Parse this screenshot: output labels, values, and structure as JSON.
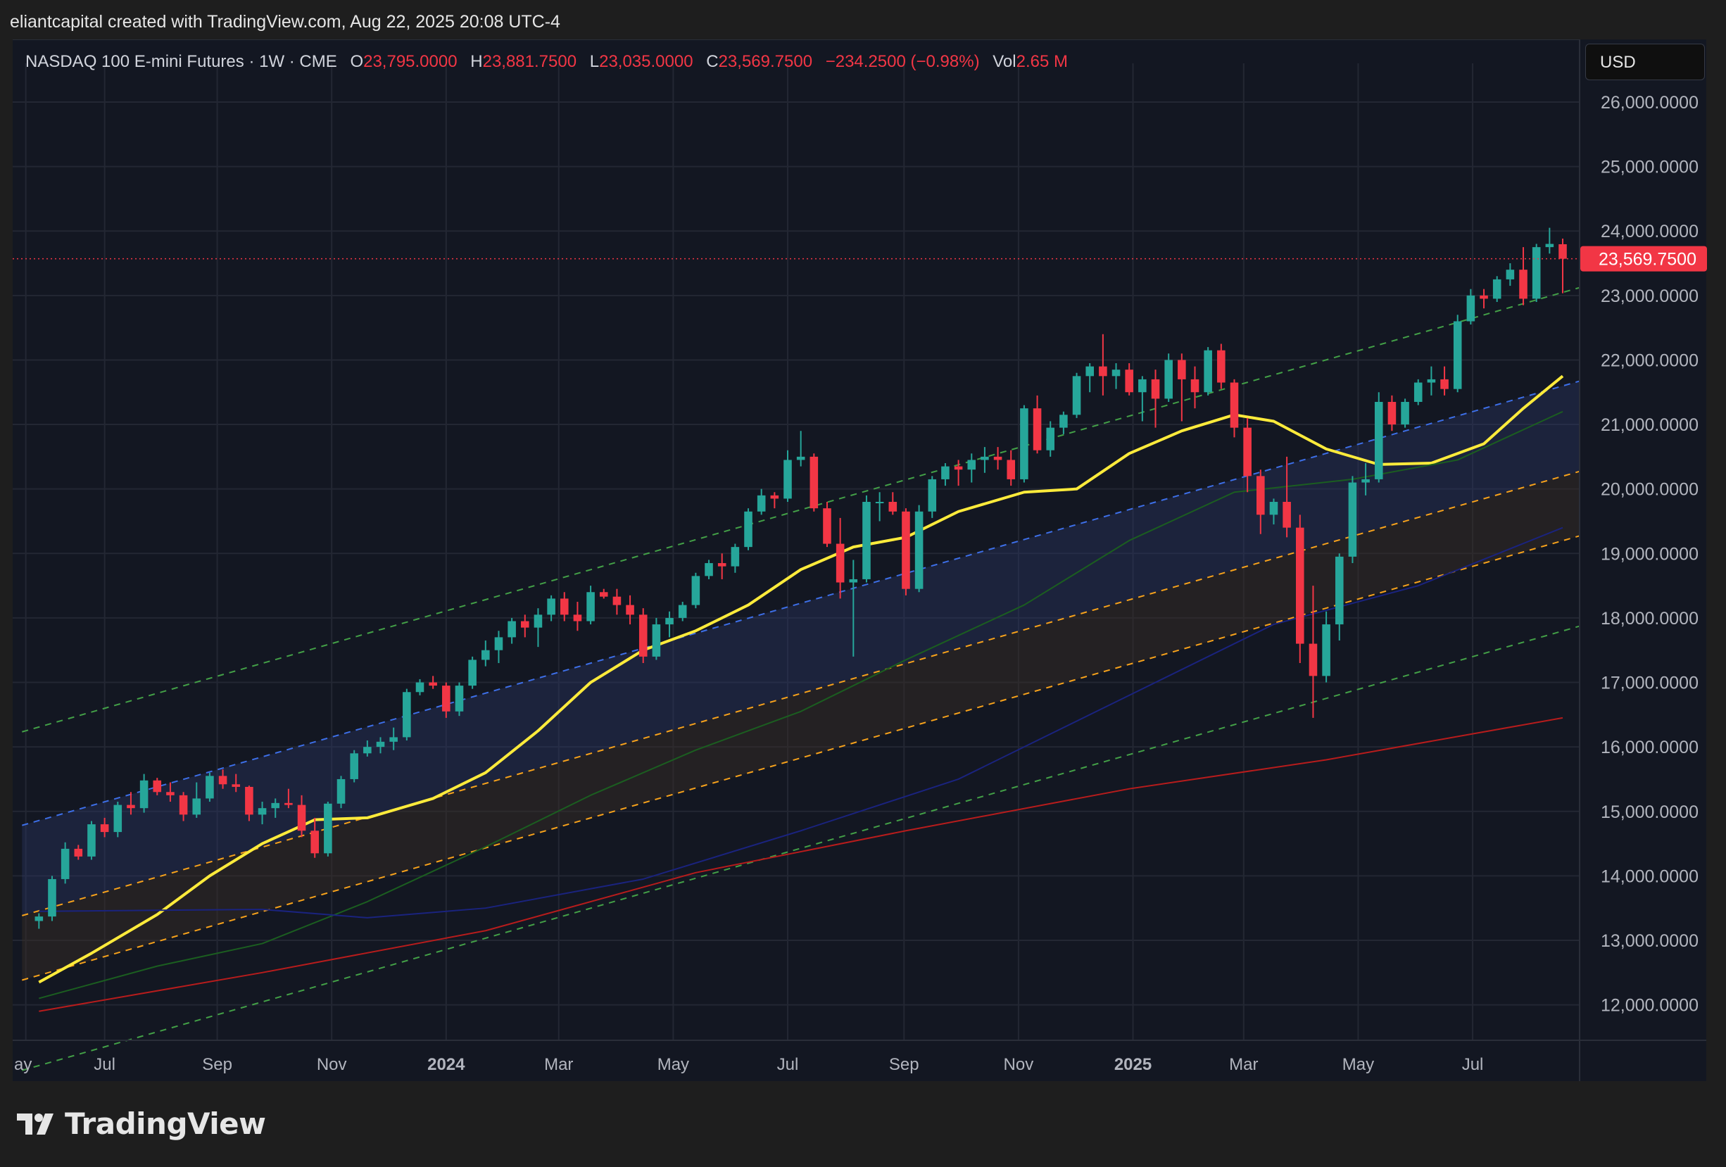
{
  "header": {
    "text": "eliantcapital created with TradingView.com, Aug 22, 2025 20:08 UTC-4"
  },
  "legend": {
    "symbol": "NASDAQ 100 E-mini Futures · 1W · CME",
    "o_label": "O",
    "o_value": "23,795.0000",
    "h_label": "H",
    "h_value": "23,881.7500",
    "l_label": "L",
    "l_value": "23,035.0000",
    "c_label": "C",
    "c_value": "23,569.7500",
    "change": "−234.2500 (−0.98%)",
    "vol_label": "Vol",
    "vol_value": "2.65 M"
  },
  "currency": "USD",
  "price_label": "23,569.7500",
  "brand": "TradingView",
  "colors": {
    "background": "#131722",
    "up": "#26a69a",
    "down": "#f23645",
    "ma20": "#ffeb3b",
    "ma50": "#1b5e20",
    "ma100": "#1a237e",
    "ma200": "#b71c1c"
  },
  "chart_data": {
    "type": "candlestick",
    "title": "NASDAQ 100 E-mini Futures · 1W · CME",
    "interval": "1W",
    "ylim": [
      11450,
      26600
    ],
    "y_ticks": [
      "12,000.0000",
      "13,000.0000",
      "14,000.0000",
      "15,000.0000",
      "16,000.0000",
      "17,000.0000",
      "18,000.0000",
      "19,000.0000",
      "20,000.0000",
      "21,000.0000",
      "22,000.0000",
      "23,000.0000",
      "24,000.0000",
      "25,000.0000",
      "26,000.0000"
    ],
    "y_tick_values": [
      12000,
      13000,
      14000,
      15000,
      16000,
      17000,
      18000,
      19000,
      20000,
      21000,
      22000,
      23000,
      24000,
      25000,
      26000
    ],
    "x_ticks": [
      "ay",
      "Jul",
      "Sep",
      "Nov",
      "2024",
      "Mar",
      "May",
      "Jul",
      "Sep",
      "Nov",
      "2025",
      "Mar",
      "May",
      "Jul"
    ],
    "x_tick_dates": [
      "2023-05-22",
      "2023-07-03",
      "2023-09-01",
      "2023-11-01",
      "2024-01-01",
      "2024-03-01",
      "2024-05-01",
      "2024-07-01",
      "2024-09-01",
      "2024-11-01",
      "2025-01-01",
      "2025-03-01",
      "2025-05-01",
      "2025-07-01"
    ],
    "bold_ticks": [
      "2024",
      "2025"
    ],
    "grid": true,
    "last_price": 23569.75,
    "ohlc": [
      [
        "2023-05-29",
        13300,
        13420,
        13180,
        13370
      ],
      [
        "2023-06-05",
        13370,
        14000,
        13300,
        13950
      ],
      [
        "2023-06-12",
        13950,
        14520,
        13880,
        14420
      ],
      [
        "2023-06-19",
        14420,
        14480,
        14250,
        14300
      ],
      [
        "2023-06-26",
        14300,
        14850,
        14250,
        14800
      ],
      [
        "2023-07-03",
        14800,
        14900,
        14600,
        14680
      ],
      [
        "2023-07-10",
        14680,
        15150,
        14600,
        15100
      ],
      [
        "2023-07-17",
        15100,
        15300,
        14950,
        15050
      ],
      [
        "2023-07-24",
        15050,
        15580,
        14980,
        15480
      ],
      [
        "2023-07-31",
        15480,
        15520,
        15250,
        15300
      ],
      [
        "2023-08-07",
        15300,
        15450,
        15150,
        15250
      ],
      [
        "2023-08-14",
        15250,
        15300,
        14850,
        14950
      ],
      [
        "2023-08-21",
        14950,
        15450,
        14900,
        15200
      ],
      [
        "2023-08-28",
        15200,
        15600,
        15150,
        15550
      ],
      [
        "2023-09-04",
        15550,
        15650,
        15350,
        15420
      ],
      [
        "2023-09-11",
        15420,
        15580,
        15300,
        15380
      ],
      [
        "2023-09-18",
        15380,
        15400,
        14850,
        14950
      ],
      [
        "2023-09-25",
        14950,
        15150,
        14800,
        15050
      ],
      [
        "2023-10-02",
        15050,
        15200,
        14900,
        15130
      ],
      [
        "2023-10-09",
        15130,
        15350,
        15050,
        15100
      ],
      [
        "2023-10-16",
        15100,
        15250,
        14600,
        14700
      ],
      [
        "2023-10-23",
        14700,
        14900,
        14280,
        14350
      ],
      [
        "2023-10-30",
        14350,
        15150,
        14300,
        15120
      ],
      [
        "2023-11-06",
        15120,
        15550,
        15050,
        15500
      ],
      [
        "2023-11-13",
        15500,
        15950,
        15450,
        15900
      ],
      [
        "2023-11-20",
        15900,
        16100,
        15850,
        16000
      ],
      [
        "2023-11-27",
        16000,
        16150,
        15900,
        16080
      ],
      [
        "2023-12-04",
        16080,
        16300,
        15950,
        16150
      ],
      [
        "2023-12-11",
        16150,
        16900,
        16100,
        16850
      ],
      [
        "2023-12-18",
        16850,
        17050,
        16800,
        17000
      ],
      [
        "2023-12-25",
        17000,
        17100,
        16900,
        16950
      ],
      [
        "2024-01-01",
        16950,
        17000,
        16450,
        16550
      ],
      [
        "2024-01-08",
        16550,
        17000,
        16480,
        16950
      ],
      [
        "2024-01-15",
        16950,
        17400,
        16900,
        17350
      ],
      [
        "2024-01-22",
        17350,
        17650,
        17250,
        17500
      ],
      [
        "2024-01-29",
        17500,
        17800,
        17300,
        17700
      ],
      [
        "2024-02-05",
        17700,
        18000,
        17600,
        17950
      ],
      [
        "2024-02-12",
        17950,
        18050,
        17700,
        17850
      ],
      [
        "2024-02-19",
        17850,
        18150,
        17550,
        18050
      ],
      [
        "2024-02-26",
        18050,
        18350,
        17950,
        18300
      ],
      [
        "2024-03-04",
        18300,
        18400,
        17950,
        18050
      ],
      [
        "2024-03-11",
        18050,
        18250,
        17800,
        17950
      ],
      [
        "2024-03-18",
        17950,
        18500,
        17900,
        18400
      ],
      [
        "2024-03-25",
        18400,
        18450,
        18300,
        18330
      ],
      [
        "2024-04-01",
        18330,
        18450,
        18050,
        18200
      ],
      [
        "2024-04-08",
        18200,
        18350,
        17900,
        18050
      ],
      [
        "2024-04-15",
        18050,
        18150,
        17300,
        17400
      ],
      [
        "2024-04-22",
        17400,
        18000,
        17350,
        17900
      ],
      [
        "2024-04-29",
        17900,
        18100,
        17700,
        18000
      ],
      [
        "2024-05-06",
        18000,
        18250,
        17950,
        18200
      ],
      [
        "2024-05-13",
        18200,
        18700,
        18150,
        18650
      ],
      [
        "2024-05-20",
        18650,
        18900,
        18600,
        18850
      ],
      [
        "2024-05-27",
        18850,
        19000,
        18600,
        18800
      ],
      [
        "2024-06-03",
        18800,
        19150,
        18700,
        19100
      ],
      [
        "2024-06-10",
        19100,
        19700,
        19050,
        19650
      ],
      [
        "2024-06-17",
        19650,
        20000,
        19600,
        19900
      ],
      [
        "2024-06-24",
        19900,
        19950,
        19700,
        19850
      ],
      [
        "2024-07-01",
        19850,
        20600,
        19800,
        20450
      ],
      [
        "2024-07-08",
        20450,
        20900,
        20350,
        20500
      ],
      [
        "2024-07-15",
        20500,
        20550,
        19650,
        19700
      ],
      [
        "2024-07-22",
        19700,
        19800,
        19100,
        19150
      ],
      [
        "2024-07-29",
        19150,
        19550,
        18300,
        18550
      ],
      [
        "2024-08-05",
        18550,
        18900,
        17400,
        18600
      ],
      [
        "2024-08-12",
        18600,
        19900,
        18550,
        19800
      ],
      [
        "2024-08-19",
        19800,
        19950,
        19500,
        19800
      ],
      [
        "2024-08-26",
        19800,
        19950,
        19600,
        19650
      ],
      [
        "2024-09-02",
        19650,
        19700,
        18350,
        18450
      ],
      [
        "2024-09-09",
        18450,
        19750,
        18400,
        19650
      ],
      [
        "2024-09-16",
        19650,
        20200,
        19550,
        20150
      ],
      [
        "2024-09-23",
        20150,
        20400,
        20050,
        20350
      ],
      [
        "2024-09-30",
        20350,
        20450,
        20050,
        20300
      ],
      [
        "2024-10-07",
        20300,
        20550,
        20100,
        20450
      ],
      [
        "2024-10-14",
        20450,
        20650,
        20250,
        20500
      ],
      [
        "2024-10-21",
        20500,
        20650,
        20300,
        20450
      ],
      [
        "2024-10-28",
        20450,
        20600,
        20050,
        20150
      ],
      [
        "2024-11-04",
        20150,
        21300,
        20100,
        21250
      ],
      [
        "2024-11-11",
        21250,
        21450,
        20550,
        20600
      ],
      [
        "2024-11-18",
        20600,
        21050,
        20500,
        20950
      ],
      [
        "2024-11-25",
        20950,
        21200,
        20850,
        21150
      ],
      [
        "2024-12-02",
        21150,
        21800,
        21100,
        21750
      ],
      [
        "2024-12-09",
        21750,
        21950,
        21500,
        21900
      ],
      [
        "2024-12-16",
        21900,
        22400,
        21450,
        21750
      ],
      [
        "2024-12-23",
        21750,
        21950,
        21550,
        21850
      ],
      [
        "2024-12-30",
        21850,
        21950,
        21450,
        21500
      ],
      [
        "2025-01-06",
        21500,
        21750,
        21050,
        21700
      ],
      [
        "2025-01-13",
        21700,
        21850,
        20950,
        21400
      ],
      [
        "2025-01-20",
        21400,
        22100,
        21350,
        22000
      ],
      [
        "2025-01-27",
        22000,
        22100,
        21050,
        21700
      ],
      [
        "2025-02-03",
        21700,
        21900,
        21250,
        21500
      ],
      [
        "2025-02-10",
        21500,
        22200,
        21450,
        22150
      ],
      [
        "2025-02-17",
        22150,
        22250,
        21550,
        21650
      ],
      [
        "2025-02-24",
        21650,
        21700,
        20800,
        20950
      ],
      [
        "2025-03-03",
        20950,
        21100,
        19950,
        20200
      ],
      [
        "2025-03-10",
        20200,
        20300,
        19300,
        19600
      ],
      [
        "2025-03-17",
        19600,
        19850,
        19450,
        19800
      ],
      [
        "2025-03-24",
        19800,
        20500,
        19250,
        19400
      ],
      [
        "2025-03-31",
        19400,
        19600,
        17300,
        17600
      ],
      [
        "2025-04-07",
        17600,
        18500,
        16450,
        17100
      ],
      [
        "2025-04-14",
        17100,
        18100,
        17000,
        17900
      ],
      [
        "2025-04-21",
        17900,
        19000,
        17650,
        18950
      ],
      [
        "2025-04-28",
        18950,
        20200,
        18850,
        20100
      ],
      [
        "2025-05-05",
        20100,
        20400,
        19900,
        20150
      ],
      [
        "2025-05-12",
        20150,
        21500,
        20100,
        21350
      ],
      [
        "2025-05-19",
        21350,
        21450,
        20900,
        21000
      ],
      [
        "2025-05-26",
        21000,
        21400,
        20950,
        21350
      ],
      [
        "2025-06-02",
        21350,
        21700,
        21300,
        21650
      ],
      [
        "2025-06-09",
        21650,
        21900,
        21450,
        21700
      ],
      [
        "2025-06-16",
        21700,
        21900,
        21450,
        21550
      ],
      [
        "2025-06-23",
        21550,
        22700,
        21500,
        22600
      ],
      [
        "2025-06-30",
        22600,
        23100,
        22550,
        23000
      ],
      [
        "2025-07-07",
        23000,
        23100,
        22800,
        22950
      ],
      [
        "2025-07-14",
        22950,
        23300,
        22900,
        23250
      ],
      [
        "2025-07-21",
        23250,
        23500,
        23150,
        23400
      ],
      [
        "2025-07-28",
        23400,
        23750,
        22850,
        22950
      ],
      [
        "2025-08-04",
        22950,
        23800,
        22900,
        23750
      ],
      [
        "2025-08-11",
        23750,
        24050,
        23650,
        23800
      ],
      [
        "2025-08-18",
        23795,
        23881.75,
        23035,
        23569.75
      ]
    ],
    "moving_averages": [
      {
        "color": "#ffeb3b",
        "values": [
          [
            "2023-05-29",
            12350
          ],
          [
            "2023-06-26",
            12800
          ],
          [
            "2023-07-31",
            13400
          ],
          [
            "2023-08-28",
            14000
          ],
          [
            "2023-09-25",
            14500
          ],
          [
            "2023-10-23",
            14870
          ],
          [
            "2023-11-20",
            14900
          ],
          [
            "2023-12-25",
            15200
          ],
          [
            "2024-01-22",
            15600
          ],
          [
            "2024-02-19",
            16250
          ],
          [
            "2024-03-18",
            17000
          ],
          [
            "2024-04-15",
            17500
          ],
          [
            "2024-05-13",
            17800
          ],
          [
            "2024-06-10",
            18200
          ],
          [
            "2024-07-08",
            18750
          ],
          [
            "2024-08-05",
            19100
          ],
          [
            "2024-09-02",
            19250
          ],
          [
            "2024-09-30",
            19650
          ],
          [
            "2024-11-04",
            19950
          ],
          [
            "2024-12-02",
            20000
          ],
          [
            "2024-12-30",
            20550
          ],
          [
            "2025-01-27",
            20900
          ],
          [
            "2025-02-24",
            21150
          ],
          [
            "2025-03-17",
            21050
          ],
          [
            "2025-04-14",
            20620
          ],
          [
            "2025-05-12",
            20380
          ],
          [
            "2025-06-09",
            20400
          ],
          [
            "2025-07-07",
            20700
          ],
          [
            "2025-07-28",
            21250
          ],
          [
            "2025-08-18",
            21750
          ]
        ]
      },
      {
        "color": "#1b5e20",
        "values": [
          [
            "2023-05-29",
            12100
          ],
          [
            "2023-07-31",
            12600
          ],
          [
            "2023-09-25",
            12950
          ],
          [
            "2023-11-20",
            13600
          ],
          [
            "2024-01-22",
            14450
          ],
          [
            "2024-03-18",
            15250
          ],
          [
            "2024-05-13",
            15950
          ],
          [
            "2024-07-08",
            16550
          ],
          [
            "2024-09-02",
            17350
          ],
          [
            "2024-11-04",
            18200
          ],
          [
            "2024-12-30",
            19200
          ],
          [
            "2025-02-24",
            19950
          ],
          [
            "2025-04-28",
            20150
          ],
          [
            "2025-06-23",
            20450
          ],
          [
            "2025-08-18",
            21200
          ]
        ]
      },
      {
        "color": "#1a237e",
        "values": [
          [
            "2023-05-29",
            13450
          ],
          [
            "2023-09-25",
            13480
          ],
          [
            "2023-11-20",
            13350
          ],
          [
            "2024-01-22",
            13500
          ],
          [
            "2024-04-15",
            13950
          ],
          [
            "2024-07-08",
            14700
          ],
          [
            "2024-09-30",
            15500
          ],
          [
            "2024-12-30",
            16800
          ],
          [
            "2025-03-17",
            17900
          ],
          [
            "2025-06-02",
            18500
          ],
          [
            "2025-08-18",
            19400
          ]
        ]
      },
      {
        "color": "#b71c1c",
        "values": [
          [
            "2023-05-29",
            11900
          ],
          [
            "2023-09-25",
            12500
          ],
          [
            "2024-01-22",
            13150
          ],
          [
            "2024-05-13",
            14050
          ],
          [
            "2024-09-02",
            14700
          ],
          [
            "2024-12-30",
            15350
          ],
          [
            "2025-04-14",
            15800
          ],
          [
            "2025-08-18",
            16450
          ]
        ]
      }
    ],
    "channel": {
      "base_date": "2023-05-22",
      "center_at_base": 13800,
      "slope_per_day": 8.3,
      "lines": [
        {
          "offset": 2450,
          "color": "#43a047",
          "dash": true
        },
        {
          "offset": 1000,
          "color": "#3d6fe8",
          "dash": true
        },
        {
          "offset": -400,
          "color": "#f7a21b",
          "dash": true
        },
        {
          "offset": -1400,
          "color": "#f7a21b",
          "dash": true
        },
        {
          "offset": -2800,
          "color": "#43a047",
          "dash": true
        }
      ]
    }
  }
}
